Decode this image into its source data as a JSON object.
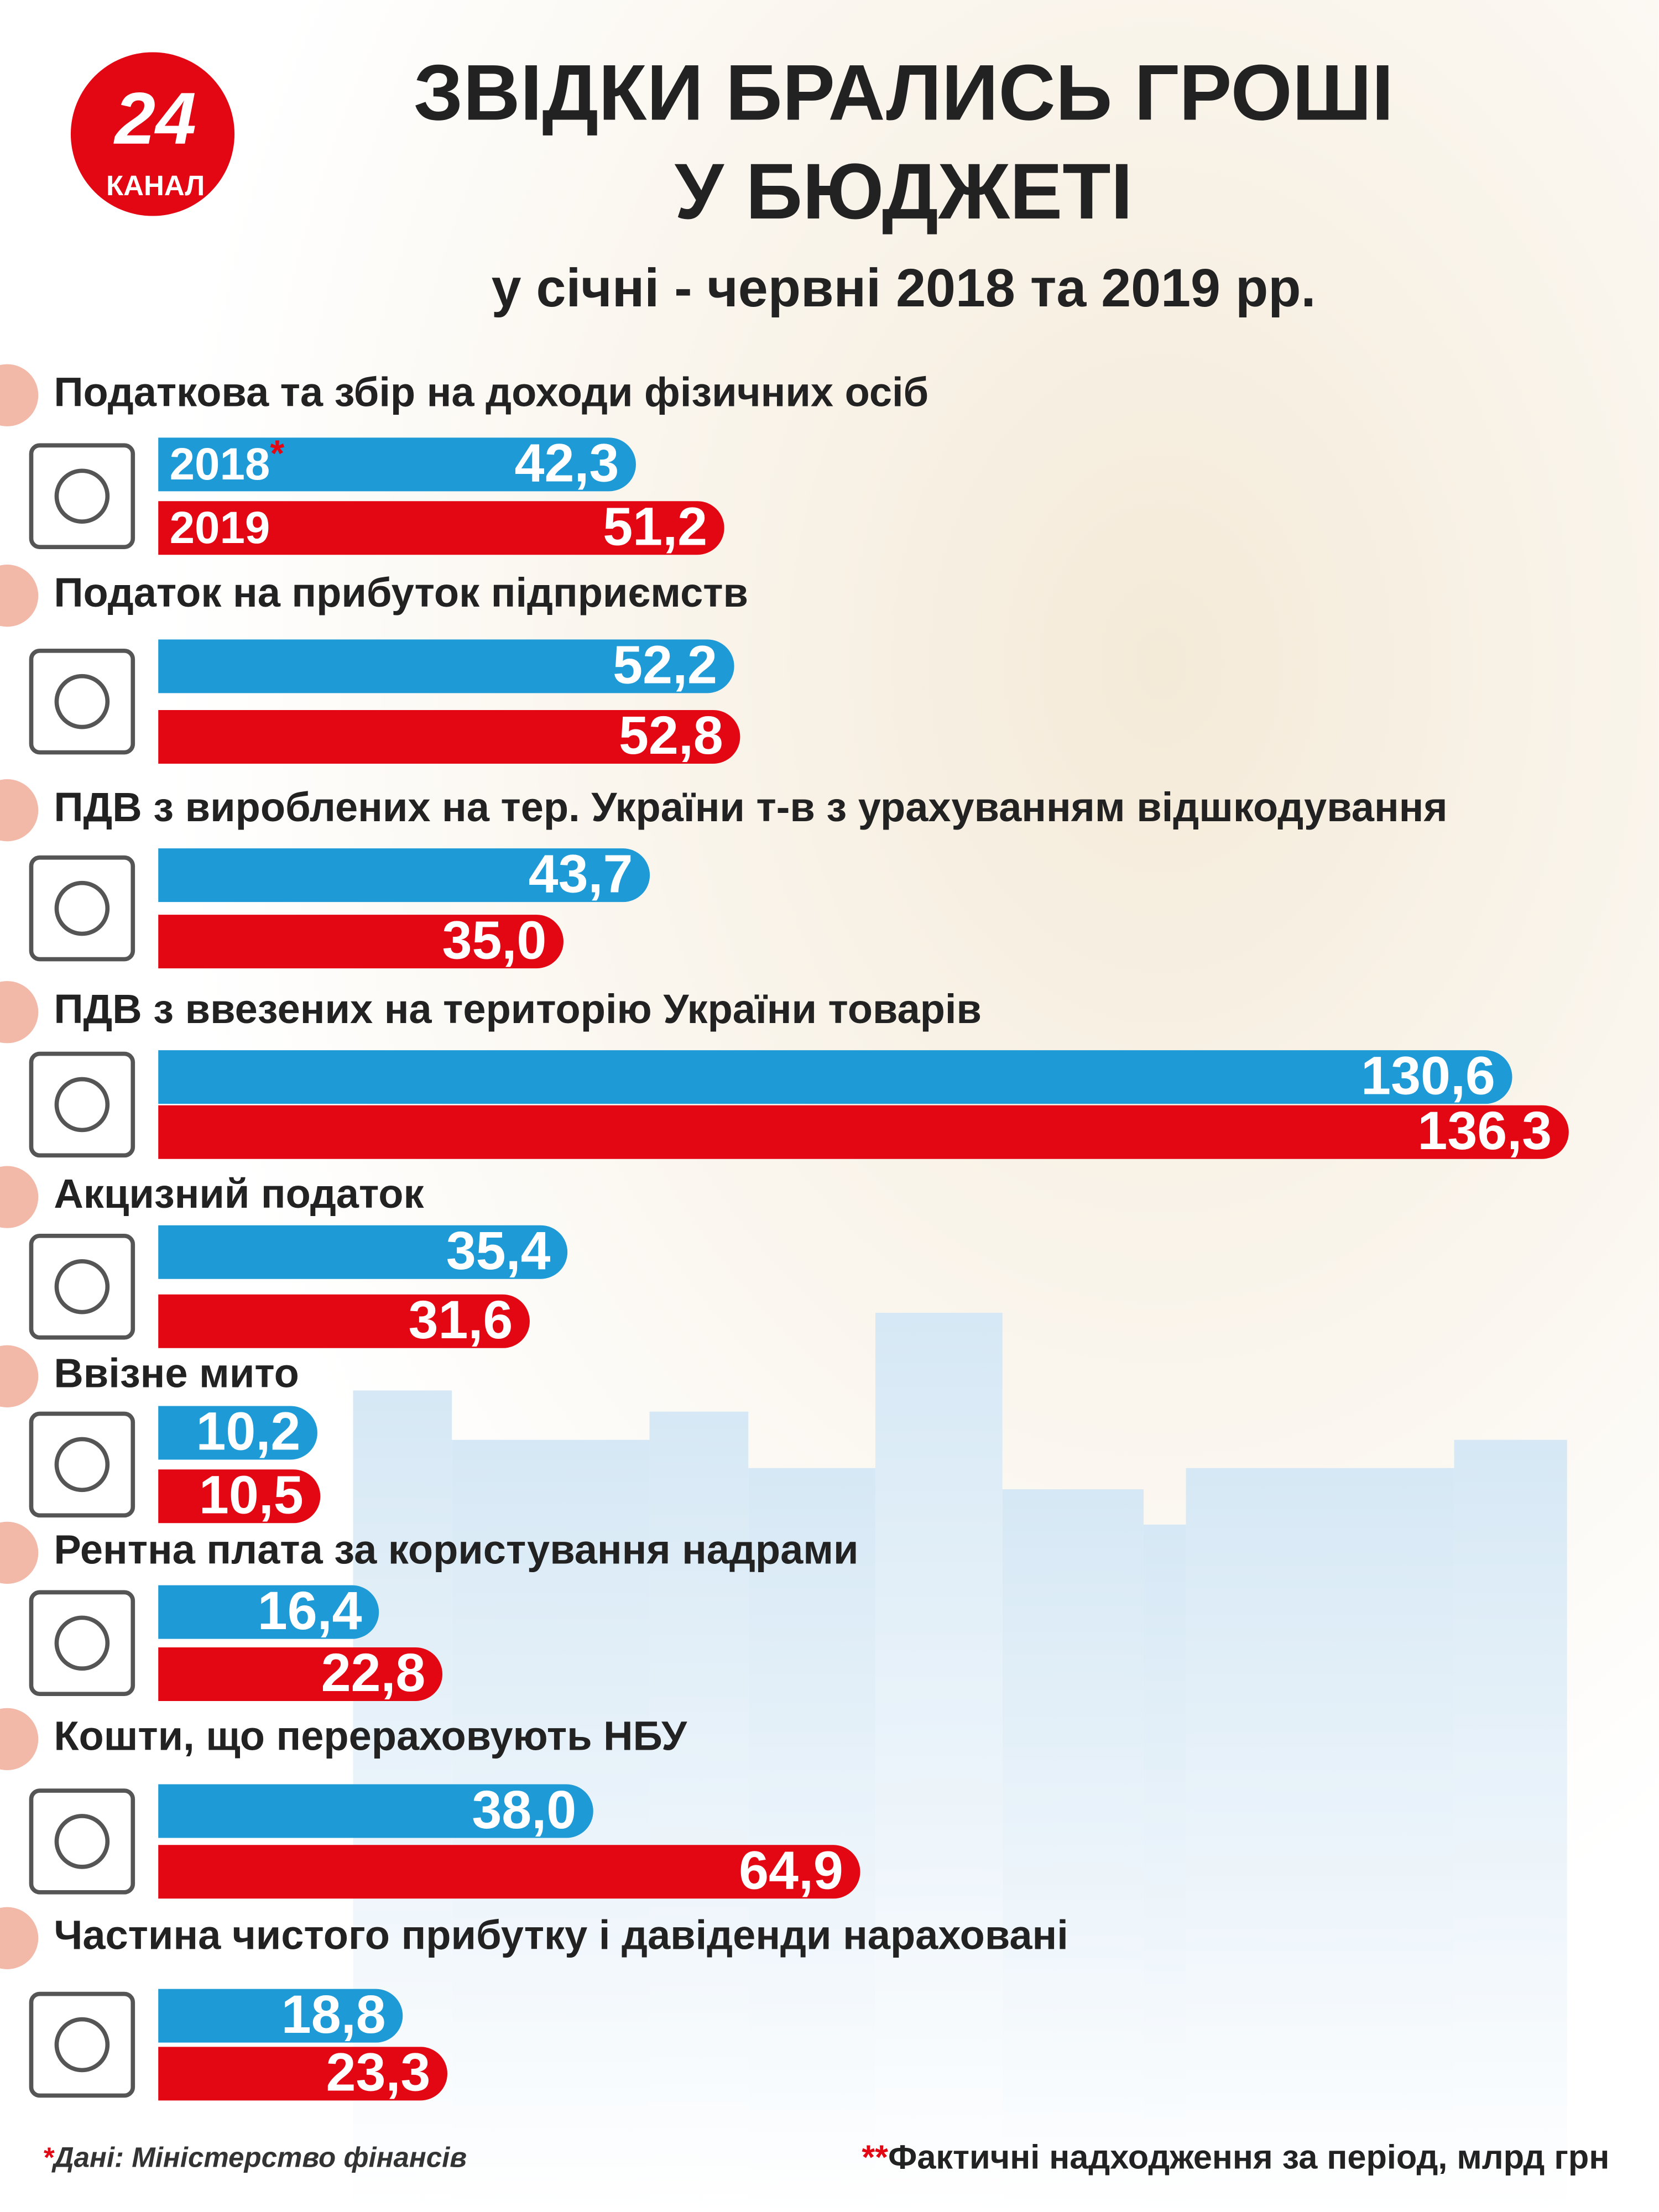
{
  "logo": {
    "number": "24",
    "name": "КАНАЛ"
  },
  "chart_data": {
    "type": "hbar",
    "title": [
      "ЗВІДКИ БРАЛИСЬ ГРОШІ",
      "У БЮДЖЕТІ"
    ],
    "subtitle": "у січні - червні 2018 та 2019 рр.",
    "categories": [
      "Податкова та збір на доходи фізичних осіб",
      "Податок на прибуток підприємств",
      "ПДВ з вироблених на тер. України т-в з урахуванням відшкодування",
      "ПДВ з ввезених на територію України товарів",
      "Акцизний податок",
      "Ввізне мито",
      "Рентна плата за користування надрами",
      "Кошти, що перераховують НБУ",
      "Частина чистого прибутку і давіденди нараховані"
    ],
    "series": [
      {
        "name": "2018",
        "color": "#1e9ad6",
        "values": [
          42.3,
          52.2,
          43.7,
          130.6,
          35.4,
          10.2,
          16.4,
          38.0,
          18.8
        ],
        "value_labels": [
          "42,3",
          "52,2",
          "43,7",
          "130,6",
          "35,4",
          "10,2",
          "16,4",
          "38,0",
          "18,8"
        ]
      },
      {
        "name": "2019",
        "color": "#e30613",
        "values": [
          51.2,
          52.8,
          35.0,
          136.3,
          31.6,
          10.5,
          22.8,
          64.9,
          23.3
        ],
        "value_labels": [
          "51,2",
          "52,8",
          "35,0",
          "136,3",
          "31,6",
          "10,5",
          "22,8",
          "64,9",
          "23,3"
        ]
      }
    ],
    "source": {
      "marker": "*",
      "text": "Дані: Міністерство фінансів"
    },
    "note": {
      "marker": "**",
      "text": "Фактичні надходження за період, млрд грн"
    }
  }
}
